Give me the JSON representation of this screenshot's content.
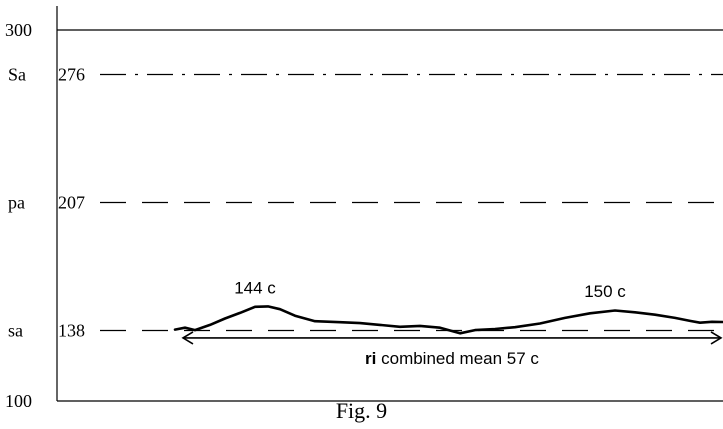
{
  "chart_data": {
    "type": "line",
    "ylim": [
      100,
      300
    ],
    "xlim": [
      0,
      723
    ],
    "grid": false,
    "y_ticks": [
      {
        "value": 300,
        "label": "300",
        "tag": ""
      },
      {
        "value": 276,
        "label": "276",
        "tag": "Sa"
      },
      {
        "value": 207,
        "label": "207",
        "tag": "pa"
      },
      {
        "value": 138,
        "label": "138",
        "tag": "sa"
      },
      {
        "value": 100,
        "label": "100",
        "tag": ""
      }
    ],
    "reference_lines": [
      {
        "value": 300,
        "style": "solid"
      },
      {
        "value": 276,
        "style": "dashdot"
      },
      {
        "value": 207,
        "style": "dashed"
      },
      {
        "value": 138,
        "style": "dashed"
      }
    ],
    "series": [
      {
        "points": [
          [
            175,
            138.5
          ],
          [
            185,
            139.5
          ],
          [
            195,
            138.2
          ],
          [
            210,
            141.0
          ],
          [
            225,
            144.5
          ],
          [
            240,
            147.5
          ],
          [
            255,
            150.8
          ],
          [
            268,
            151.0
          ],
          [
            280,
            149.5
          ],
          [
            295,
            146.0
          ],
          [
            315,
            143.0
          ],
          [
            340,
            142.5
          ],
          [
            360,
            142.0
          ],
          [
            380,
            141.0
          ],
          [
            400,
            140.0
          ],
          [
            420,
            140.5
          ],
          [
            440,
            139.5
          ],
          [
            460,
            136.5
          ],
          [
            475,
            138.2
          ],
          [
            495,
            138.8
          ],
          [
            515,
            139.8
          ],
          [
            540,
            141.8
          ],
          [
            565,
            144.8
          ],
          [
            590,
            147.3
          ],
          [
            615,
            148.8
          ],
          [
            635,
            147.8
          ],
          [
            655,
            146.5
          ],
          [
            675,
            144.8
          ],
          [
            690,
            143.2
          ],
          [
            700,
            142.2
          ],
          [
            712,
            142.7
          ],
          [
            723,
            142.6
          ]
        ]
      }
    ],
    "annotations": [
      {
        "text": "144 c",
        "x": 255,
        "y": 158
      },
      {
        "text": "150 c",
        "x": 605,
        "y": 156
      }
    ],
    "range_arrow": {
      "x_start": 183,
      "x_end": 721,
      "y": 134,
      "bold": "ri",
      "text": " combined mean 57 c"
    }
  },
  "caption": "Fig. 9"
}
